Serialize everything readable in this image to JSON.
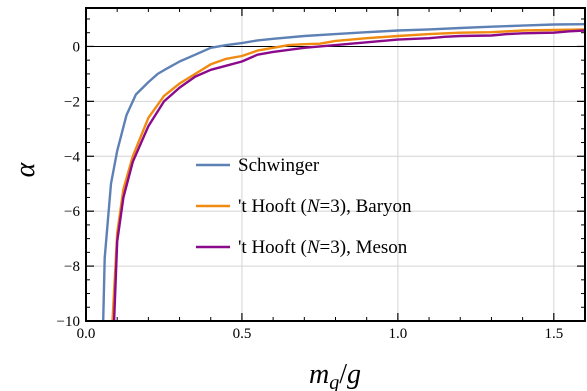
{
  "chart_data": {
    "type": "line",
    "title": "",
    "xlabel": "m_q/g",
    "ylabel": "α",
    "xlim": [
      0.0,
      1.6
    ],
    "ylim": [
      -10,
      1.4
    ],
    "grid": true,
    "legend_position": "center",
    "reference_line": {
      "y": 0,
      "color": "#000000"
    },
    "x_ticks": [
      {
        "value": 0.0,
        "label": "0.0"
      },
      {
        "value": 0.5,
        "label": "0.5"
      },
      {
        "value": 1.0,
        "label": "1.0"
      },
      {
        "value": 1.5,
        "label": "1.5"
      }
    ],
    "y_ticks": [
      {
        "value": 0,
        "label": "0"
      },
      {
        "value": -2,
        "label": "−2"
      },
      {
        "value": -4,
        "label": "−4"
      },
      {
        "value": -6,
        "label": "−6"
      },
      {
        "value": -8,
        "label": "−8"
      },
      {
        "value": -10,
        "label": "−10"
      }
    ],
    "series": [
      {
        "name": "Schwinger",
        "color": "#5e81b5",
        "points": [
          [
            0.055,
            -10
          ],
          [
            0.06,
            -7.7
          ],
          [
            0.08,
            -5.0
          ],
          [
            0.1,
            -3.8
          ],
          [
            0.13,
            -2.5
          ],
          [
            0.16,
            -1.75
          ],
          [
            0.2,
            -1.3
          ],
          [
            0.23,
            -1.0
          ],
          [
            0.26,
            -0.8
          ],
          [
            0.3,
            -0.55
          ],
          [
            0.35,
            -0.3
          ],
          [
            0.4,
            -0.05
          ],
          [
            0.45,
            0.05
          ],
          [
            0.5,
            0.12
          ],
          [
            0.55,
            0.22
          ],
          [
            0.6,
            0.28
          ],
          [
            0.7,
            0.38
          ],
          [
            0.8,
            0.45
          ],
          [
            0.9,
            0.52
          ],
          [
            1.0,
            0.58
          ],
          [
            1.1,
            0.62
          ],
          [
            1.2,
            0.67
          ],
          [
            1.3,
            0.72
          ],
          [
            1.4,
            0.76
          ],
          [
            1.5,
            0.8
          ],
          [
            1.6,
            0.81
          ]
        ]
      },
      {
        "name": "'t Hooft (N=3), Baryon",
        "color": "#f08a10",
        "points": [
          [
            0.085,
            -10
          ],
          [
            0.1,
            -6.8
          ],
          [
            0.12,
            -5.2
          ],
          [
            0.15,
            -4.0
          ],
          [
            0.2,
            -2.6
          ],
          [
            0.25,
            -1.8
          ],
          [
            0.3,
            -1.35
          ],
          [
            0.35,
            -1.0
          ],
          [
            0.4,
            -0.65
          ],
          [
            0.45,
            -0.45
          ],
          [
            0.5,
            -0.35
          ],
          [
            0.55,
            -0.15
          ],
          [
            0.6,
            -0.05
          ],
          [
            0.65,
            0.05
          ],
          [
            0.7,
            0.08
          ],
          [
            0.75,
            0.1
          ],
          [
            0.8,
            0.2
          ],
          [
            0.9,
            0.3
          ],
          [
            1.0,
            0.38
          ],
          [
            1.1,
            0.45
          ],
          [
            1.2,
            0.5
          ],
          [
            1.3,
            0.52
          ],
          [
            1.4,
            0.58
          ],
          [
            1.5,
            0.6
          ],
          [
            1.6,
            0.62
          ]
        ]
      },
      {
        "name": "'t Hooft (N=3), Meson",
        "color": "#8b0a8b",
        "points": [
          [
            0.09,
            -10
          ],
          [
            0.1,
            -7.1
          ],
          [
            0.12,
            -5.5
          ],
          [
            0.15,
            -4.2
          ],
          [
            0.2,
            -2.9
          ],
          [
            0.25,
            -2.0
          ],
          [
            0.3,
            -1.5
          ],
          [
            0.35,
            -1.1
          ],
          [
            0.4,
            -0.85
          ],
          [
            0.45,
            -0.7
          ],
          [
            0.5,
            -0.55
          ],
          [
            0.55,
            -0.3
          ],
          [
            0.6,
            -0.2
          ],
          [
            0.7,
            -0.05
          ],
          [
            0.75,
            0.0
          ],
          [
            0.8,
            0.05
          ],
          [
            0.9,
            0.15
          ],
          [
            1.0,
            0.25
          ],
          [
            1.1,
            0.3
          ],
          [
            1.15,
            0.35
          ],
          [
            1.2,
            0.38
          ],
          [
            1.3,
            0.4
          ],
          [
            1.35,
            0.45
          ],
          [
            1.4,
            0.48
          ],
          [
            1.5,
            0.5
          ],
          [
            1.55,
            0.55
          ],
          [
            1.6,
            0.58
          ]
        ]
      }
    ],
    "legend": [
      {
        "prefix": "Schwinger",
        "italic": "",
        "suffix": ""
      },
      {
        "prefix": "'t Hooft (",
        "italic": "N",
        "suffix": "=3), Baryon"
      },
      {
        "prefix": "'t Hooft (",
        "italic": "N",
        "suffix": "=3), Meson"
      }
    ]
  }
}
